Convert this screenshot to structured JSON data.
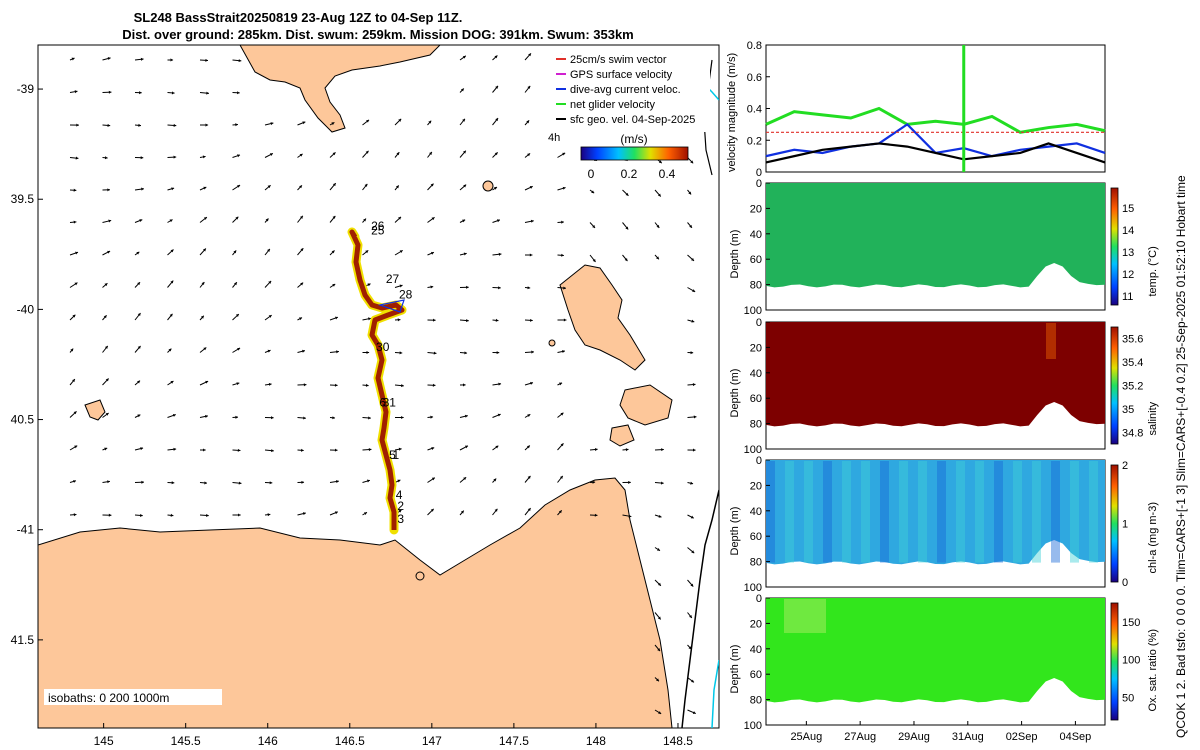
{
  "title_line1": "SL248 BassStrait20250819 23-Aug 12Z to 04-Sep 11Z.",
  "title_line2": "Dist. over ground: 285km. Dist. swum: 259km. Mission DOG: 391km. Swum: 353km",
  "side_label": "QCOK 1  2. Bad tsfo: 0  0  0  0. Tlim=CARS+[-1 3] Slim=CARS+[-0.4 0.2] 25-Sep-2025 01:52:10 Hobart time",
  "legend": {
    "items": [
      {
        "label": "25cm/s swim vector",
        "color": "#e0302a"
      },
      {
        "label": "GPS surface velocity",
        "color": "#d020d0"
      },
      {
        "label": "dive-avg current veloc.",
        "color": "#1030e0"
      },
      {
        "label": "net glider velocity",
        "color": "#22dd22"
      },
      {
        "label": "sfc geo. vel. 04-Sep-2025",
        "color": "#000000"
      }
    ],
    "time_note": "4h",
    "colorbar_title": "(m/s)",
    "colorbar_ticks": [
      "0",
      "0.2",
      "0.4"
    ]
  },
  "isobaths_label": "isobaths: 0   200  1000m",
  "map": {
    "xlim": [
      144.6,
      148.75
    ],
    "ylim": [
      -41.9,
      -38.8
    ],
    "xticks": [
      {
        "v": 145,
        "label": "145"
      },
      {
        "v": 145.5,
        "label": "145.5"
      },
      {
        "v": 146,
        "label": "146"
      },
      {
        "v": 146.5,
        "label": "146.5"
      },
      {
        "v": 147,
        "label": "147"
      },
      {
        "v": 147.5,
        "label": "147.5"
      },
      {
        "v": 148,
        "label": "148"
      },
      {
        "v": 148.5,
        "label": "148.5"
      }
    ],
    "yticks": [
      {
        "v": -39,
        "label": "-39"
      },
      {
        "v": -39.5,
        "label": "39.5"
      },
      {
        "v": -40,
        "label": "-40"
      },
      {
        "v": -40.5,
        "label": "40.5"
      },
      {
        "v": -41,
        "label": "-41"
      },
      {
        "v": -41.5,
        "label": "41.5"
      }
    ],
    "day_labels": [
      {
        "label": "26",
        "lon": 146.63,
        "lat": -39.64
      },
      {
        "label": "25",
        "lon": 146.63,
        "lat": -39.66
      },
      {
        "label": "27",
        "lon": 146.72,
        "lat": -39.88
      },
      {
        "label": "28",
        "lon": 146.8,
        "lat": -39.95
      },
      {
        "label": "30",
        "lon": 146.66,
        "lat": -40.19
      },
      {
        "label": "31",
        "lon": 146.7,
        "lat": -40.44
      },
      {
        "label": "6",
        "lon": 146.68,
        "lat": -40.44
      },
      {
        "label": "1",
        "lon": 146.76,
        "lat": -40.68
      },
      {
        "label": "5",
        "lon": 146.74,
        "lat": -40.68
      },
      {
        "label": "4",
        "lon": 146.78,
        "lat": -40.86
      },
      {
        "label": "2",
        "lon": 146.79,
        "lat": -40.91
      },
      {
        "label": "3",
        "lon": 146.79,
        "lat": -40.97
      }
    ]
  },
  "chart_data": [
    {
      "type": "line",
      "title": "",
      "ylabel": "velocity magnitude (m/s)",
      "ylim": [
        0,
        0.8
      ],
      "yticks": [
        "0",
        "0.2",
        "0.4",
        "0.6",
        "0.8"
      ],
      "x_days": [
        0,
        1,
        2,
        3,
        4,
        5,
        6,
        7,
        8,
        9,
        10,
        11,
        12
      ],
      "series": [
        {
          "name": "net glider velocity",
          "color": "#22dd22",
          "values": [
            0.3,
            0.38,
            0.36,
            0.34,
            0.4,
            0.3,
            0.32,
            0.3,
            0.35,
            0.25,
            0.28,
            0.3,
            0.26
          ]
        },
        {
          "name": "dive-avg current veloc.",
          "color": "#1030e0",
          "values": [
            0.1,
            0.14,
            0.12,
            0.16,
            0.18,
            0.3,
            0.12,
            0.15,
            0.1,
            0.14,
            0.16,
            0.18,
            0.12
          ]
        },
        {
          "name": "sfc geo. vel.",
          "color": "#000000",
          "values": [
            0.06,
            0.1,
            0.14,
            0.16,
            0.18,
            0.16,
            0.12,
            0.08,
            0.1,
            0.12,
            0.18,
            0.12,
            0.06
          ]
        },
        {
          "name": "25cm/s swim vector",
          "color": "#e0302a",
          "values": [
            0.25,
            0.25,
            0.25,
            0.25,
            0.25,
            0.25,
            0.25,
            0.25,
            0.25,
            0.25,
            0.25,
            0.25,
            0.25
          ]
        }
      ]
    },
    {
      "type": "heatmap",
      "ylabel": "Depth (m)",
      "yticks": [
        "0",
        "20",
        "40",
        "60",
        "80",
        "100"
      ],
      "colorbar_label": "temp. (°C)",
      "colorbar_ticks": [
        "11",
        "12",
        "13",
        "14",
        "15"
      ],
      "clim": [
        10.6,
        15.9
      ],
      "base_color": "#21b25a"
    },
    {
      "type": "heatmap",
      "ylabel": "Depth (m)",
      "yticks": [
        "0",
        "20",
        "40",
        "60",
        "80",
        "100"
      ],
      "colorbar_label": "salinity",
      "colorbar_ticks": [
        "34.8",
        "35",
        "35.2",
        "35.4",
        "35.6"
      ],
      "clim": [
        34.7,
        35.7
      ],
      "base_color": "#7d0000"
    },
    {
      "type": "heatmap",
      "ylabel": "Depth (m)",
      "yticks": [
        "0",
        "20",
        "40",
        "60",
        "80",
        "100"
      ],
      "colorbar_label": "chl-a (mg m-3)",
      "colorbar_ticks": [
        "0",
        "1",
        "2"
      ],
      "clim": [
        0,
        2
      ],
      "base_color": "#2fa8e0"
    },
    {
      "type": "heatmap",
      "ylabel": "Depth (m)",
      "yticks": [
        "0",
        "20",
        "40",
        "60",
        "80",
        "100"
      ],
      "colorbar_label": "Ox. sat. ratio (%)",
      "colorbar_ticks": [
        "50",
        "100",
        "150"
      ],
      "clim": [
        20,
        175
      ],
      "base_color": "#32e61c",
      "xticks": [
        "25Aug",
        "27Aug",
        "29Aug",
        "31Aug",
        "02Sep",
        "04Sep"
      ]
    }
  ]
}
